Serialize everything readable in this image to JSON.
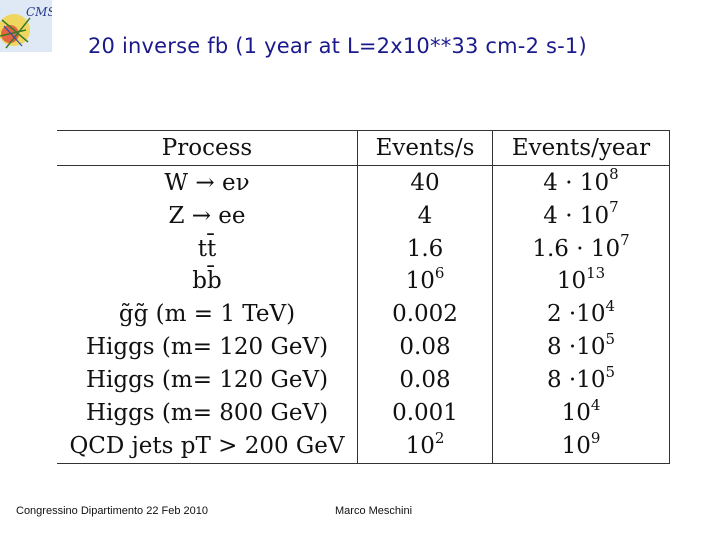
{
  "header": {
    "logo_text": "CMS",
    "title": "20 inverse fb (1 year at L=2x10**33 cm-2 s-1)"
  },
  "table": {
    "columns": [
      "Process",
      "Events/s",
      "Events/year"
    ],
    "rows": [
      {
        "process": "W → eν",
        "events_s": "40",
        "ey_base": "4 · 10",
        "ey_exp": "8"
      },
      {
        "process": "Z → ee",
        "events_s": "4",
        "ey_base": "4 · 10",
        "ey_exp": "7"
      },
      {
        "process": "tt̄",
        "events_s": "1.6",
        "ey_base": "1.6 · 10",
        "ey_exp": "7"
      },
      {
        "process": "bb̄",
        "es_base": "10",
        "es_exp": "6",
        "ey_base": "10",
        "ey_exp": "13"
      },
      {
        "process": "g̃g̃ (m = 1 TeV)",
        "events_s": "0.002",
        "ey_base": "2 ·10",
        "ey_exp": "4"
      },
      {
        "process": "Higgs (m= 120 GeV)",
        "events_s": "0.08",
        "ey_base": "8 ·10",
        "ey_exp": "5"
      },
      {
        "process": "Higgs (m= 120 GeV)",
        "events_s": "0.08",
        "ey_base": "8 ·10",
        "ey_exp": "5"
      },
      {
        "process": "Higgs (m= 800 GeV)",
        "events_s": "0.001",
        "ey_base": "10",
        "ey_exp": "4"
      },
      {
        "process": "QCD jets pT > 200 GeV",
        "es_base": "10",
        "es_exp": "2",
        "ey_base": "10",
        "ey_exp": "9"
      }
    ]
  },
  "footer": {
    "left": "Congressino Dipartimento 22 Feb 2010",
    "right": "Marco Meschini"
  }
}
